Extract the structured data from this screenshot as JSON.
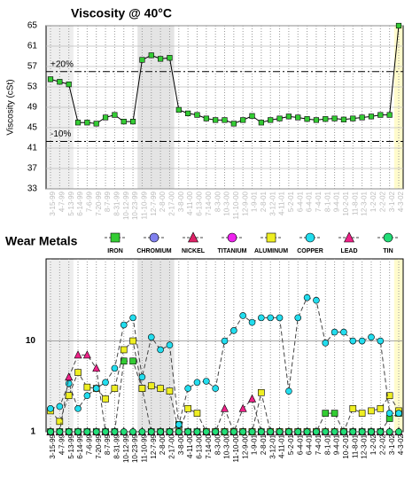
{
  "chart_data": [
    {
      "type": "line",
      "title": "Viscosity @ 40°C",
      "y_label": "Viscosity (cSt)",
      "categories": [
        "3-15-99",
        "4-7-99",
        "5-13-99",
        "6-14-99",
        "7-6-99",
        "7-20-99",
        "8-7-99",
        "8-31-99",
        "10-12-99",
        "10-23-99",
        "11-10-99",
        "12-7-99",
        "2-8-00",
        "2-17-00",
        "3-8-00",
        "4-11-00",
        "6-13-00",
        "7-14-00",
        "8-3-00",
        "10-3-00",
        "11-10-00",
        "12-9-00",
        "1-9-01",
        "2-8-01",
        "3-12-01",
        "4-11-01",
        "5-2-01",
        "6-4-01",
        "6-4-01",
        "7-4-01",
        "8-1-01",
        "9-4-01",
        "10-2-01",
        "11-8-01",
        "12-3-01",
        "1-2-02",
        "2-2-02",
        "3-1-02",
        "4-3-02"
      ],
      "series": [
        {
          "name": "Viscosity",
          "color": "#33cc33",
          "values": [
            54.5,
            54,
            53.5,
            46,
            46,
            45.8,
            47,
            47.5,
            46.2,
            46.2,
            58.3,
            59.2,
            58.5,
            58.7,
            48.5,
            47.8,
            47.5,
            46.8,
            46.5,
            46.5,
            45.8,
            46.5,
            47.3,
            46,
            46.5,
            46.8,
            47.2,
            47,
            46.7,
            46.5,
            46.7,
            46.8,
            46.6,
            46.8,
            47,
            47.2,
            47.5,
            47.5,
            65
          ]
        }
      ],
      "limit_lines": [
        {
          "value": 56,
          "label": "+20%"
        },
        {
          "value": 42.3,
          "label": "-10%"
        }
      ],
      "ylim": [
        33,
        65
      ],
      "yticks": [
        33,
        37,
        41,
        45,
        49,
        53,
        57,
        61,
        65
      ],
      "grid": true
    },
    {
      "type": "line",
      "title": "Wear Metals",
      "log_scale": true,
      "categories": [
        "3-15-99",
        "4-7-99",
        "5-13-99",
        "6-14-99",
        "7-6-99",
        "7-20-99",
        "8-7-99",
        "8-31-99",
        "10-12-99",
        "10-23-99",
        "11-10-99",
        "12-7-99",
        "2-8-00",
        "2-17-00",
        "3-8-00",
        "4-11-00",
        "6-13-00",
        "7-14-00",
        "8-3-00",
        "10-3-00",
        "11-10-00",
        "12-9-00",
        "1-9-01",
        "2-8-01",
        "3-12-01",
        "4-11-01",
        "5-2-01",
        "6-4-01",
        "6-4-01",
        "7-4-01",
        "8-1-01",
        "9-4-01",
        "10-2-01",
        "11-8-01",
        "12-3-01",
        "1-2-02",
        "2-2-02",
        "3-1-02",
        "4-3-02"
      ],
      "series": [
        {
          "name": "IRON",
          "color": "#33cc33",
          "marker": "square",
          "values": [
            1,
            1,
            1,
            1,
            1,
            1,
            1,
            1,
            6,
            6,
            3,
            1,
            1,
            1,
            1.2,
            1,
            1,
            1,
            1,
            1,
            1,
            1,
            1,
            1,
            1,
            1,
            1,
            1,
            1,
            1,
            1.6,
            1.6,
            1,
            1,
            1,
            1,
            1,
            1.4,
            1.6
          ]
        },
        {
          "name": "CHROMIUM",
          "color": "#8080ee",
          "marker": "circle",
          "values": [
            1,
            1,
            1,
            1,
            1,
            1,
            1,
            1,
            1,
            1,
            1,
            1,
            1,
            1,
            1,
            1,
            1,
            1,
            1,
            1,
            1,
            1,
            1,
            1,
            1,
            1,
            1,
            1,
            1,
            1,
            1,
            1,
            1,
            1,
            1,
            1,
            1,
            1,
            1
          ]
        },
        {
          "name": "NICKEL",
          "color": "#dd2266",
          "marker": "triangle",
          "values": [
            1,
            1,
            1,
            1,
            1,
            1,
            1,
            1,
            1,
            1,
            1,
            1,
            1,
            1,
            1,
            1,
            1,
            1,
            1,
            1,
            1,
            1,
            1,
            1,
            1,
            1,
            1,
            1,
            1,
            1,
            1,
            1,
            1,
            1,
            1,
            1,
            1,
            1,
            1
          ]
        },
        {
          "name": "TITANIUM",
          "color": "#ee22ee",
          "marker": "circle",
          "values": [
            1,
            1,
            1,
            1,
            1,
            1,
            1,
            1,
            1,
            1,
            1,
            1,
            1,
            1,
            1,
            1,
            1,
            1,
            1,
            1,
            1,
            1,
            1,
            1,
            1,
            1,
            1,
            1,
            1,
            1,
            1,
            1,
            1,
            1,
            1,
            1,
            1,
            1,
            1
          ]
        },
        {
          "name": "ALUMINUM",
          "color": "#eeee22",
          "marker": "square",
          "values": [
            1.7,
            1.3,
            2.5,
            4.5,
            3.1,
            3,
            2.3,
            3,
            8,
            10,
            3,
            3.2,
            3,
            2.8,
            1,
            1.8,
            1.6,
            1,
            1,
            1,
            1,
            1,
            1,
            2.7,
            1,
            1,
            1,
            1,
            1,
            1,
            1,
            1,
            1,
            1.8,
            1.6,
            1.7,
            1.8,
            2.5,
            1.7
          ]
        },
        {
          "name": "COPPER",
          "color": "#22ddee",
          "marker": "circle",
          "values": [
            1.8,
            1.9,
            3.4,
            1.8,
            2.5,
            3,
            3.5,
            5,
            15,
            18,
            4,
            11,
            8,
            9,
            1.2,
            3,
            3.5,
            3.6,
            3,
            10,
            13,
            19,
            16,
            18,
            18,
            18,
            2.8,
            18,
            30,
            28,
            9.5,
            12.5,
            12.5,
            10,
            10,
            11,
            10,
            1.6,
            1.6
          ]
        },
        {
          "name": "LEAD",
          "color": "#ee2288",
          "marker": "triangle",
          "values": [
            1,
            1,
            4,
            7,
            7,
            5,
            1,
            1,
            1,
            1,
            1,
            1,
            1,
            1,
            1,
            1,
            1,
            1,
            1,
            1.8,
            1,
            1.8,
            2.3,
            1,
            1,
            1,
            1,
            1,
            1,
            1,
            1,
            1,
            1,
            1,
            1,
            1,
            1,
            1,
            1
          ]
        },
        {
          "name": "TIN",
          "color": "#22dd77",
          "marker": "circle",
          "values": [
            1,
            1,
            1,
            1,
            1,
            1,
            1,
            1,
            1,
            1,
            1,
            1,
            1,
            1,
            1,
            1,
            1,
            1,
            1,
            1,
            1,
            1,
            1,
            1,
            1,
            1,
            1,
            1,
            1,
            1,
            1,
            1,
            1,
            1,
            1,
            1,
            1,
            1,
            1
          ]
        }
      ],
      "ylim": [
        1,
        80
      ],
      "yticks": [
        1,
        10
      ],
      "grid": true
    }
  ]
}
